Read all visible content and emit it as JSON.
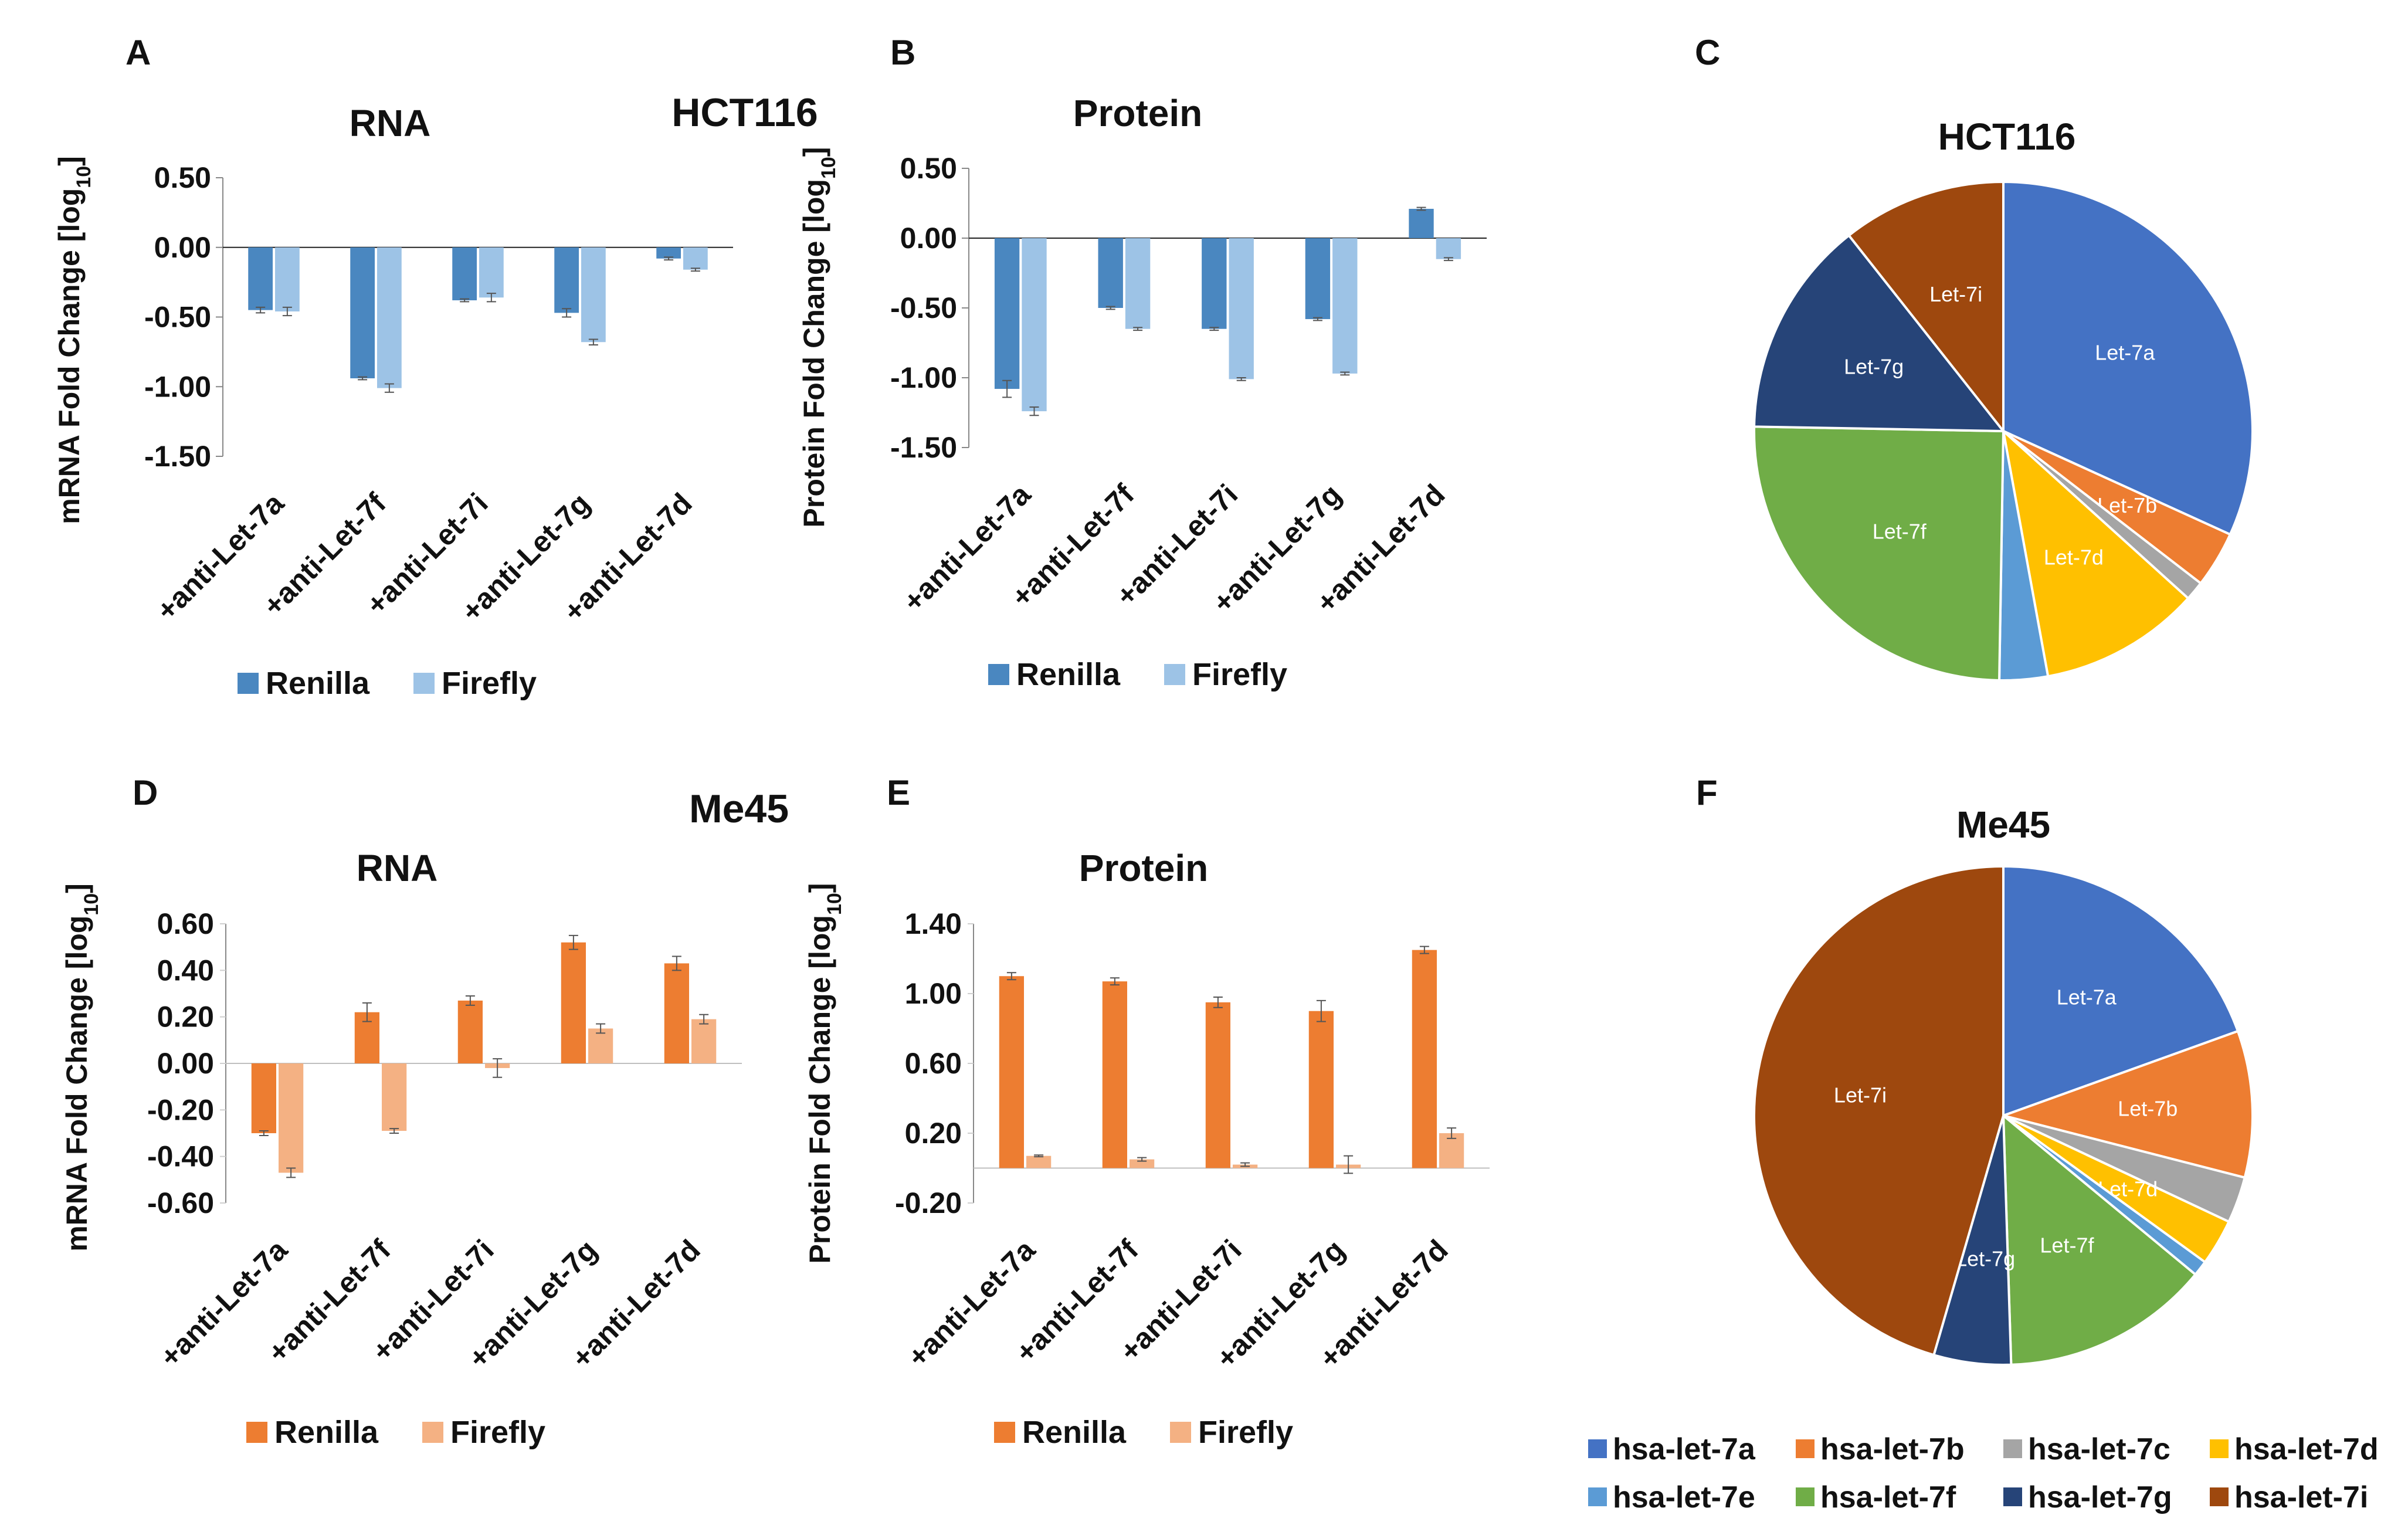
{
  "colors": {
    "renilla_blue": "#4a87c0",
    "firefly_blue": "#9dc3e6",
    "renilla_orange": "#ed7d31",
    "firefly_orange": "#f4b183",
    "pie": [
      "#4472c4",
      "#ed7d31",
      "#a5a5a5",
      "#ffc000",
      "#5b9bd5",
      "#70ad47",
      "#264478",
      "#9e480e"
    ]
  },
  "cells": {
    "top": "HCT116",
    "bottom": "Me45"
  },
  "categories": [
    "+anti-Let-7a",
    "+anti-Let-7f",
    "+anti-Let-7i",
    "+anti-Let-7g",
    "+anti-Let-7d"
  ],
  "series_names": [
    "Renilla",
    "Firefly"
  ],
  "pie_legend": [
    "hsa-let-7a",
    "hsa-let-7b",
    "hsa-let-7c",
    "hsa-let-7d",
    "hsa-let-7e",
    "hsa-let-7f",
    "hsa-let-7g",
    "hsa-let-7i"
  ],
  "chart_data": [
    {
      "panel": "A",
      "type": "bar",
      "title": "RNA",
      "ylabel": "mRNA Fold Change [log10]",
      "ylim": [
        -1.5,
        0.5
      ],
      "yticks": [
        0.5,
        0.0,
        -0.5,
        -1.0,
        -1.5
      ],
      "tick_labels": [
        "0.50",
        "0.00",
        "-0.50",
        "-1.00",
        "-1.50"
      ],
      "categories": [
        "+anti-Let-7a",
        "+anti-Let-7f",
        "+anti-Let-7i",
        "+anti-Let-7g",
        "+anti-Let-7d"
      ],
      "series": [
        {
          "name": "Renilla",
          "values": [
            -0.45,
            -0.94,
            -0.38,
            -0.47,
            -0.08
          ],
          "errors": [
            0.02,
            0.01,
            0.01,
            0.03,
            0.01
          ]
        },
        {
          "name": "Firefly",
          "values": [
            -0.46,
            -1.01,
            -0.36,
            -0.68,
            -0.16
          ],
          "errors": [
            0.03,
            0.03,
            0.03,
            0.02,
            0.01
          ]
        }
      ]
    },
    {
      "panel": "B",
      "type": "bar",
      "title": "Protein",
      "ylabel": "Protein Fold Change [log10]",
      "ylim": [
        -1.5,
        0.5
      ],
      "yticks": [
        0.5,
        0.0,
        -0.5,
        -1.0,
        -1.5
      ],
      "tick_labels": [
        "0.50",
        "0.00",
        "-0.50",
        "-1.00",
        "-1.50"
      ],
      "categories": [
        "+anti-Let-7a",
        "+anti-Let-7f",
        "+anti-Let-7i",
        "+anti-Let-7g",
        "+anti-Let-7d"
      ],
      "series": [
        {
          "name": "Renilla",
          "values": [
            -1.08,
            -0.5,
            -0.65,
            -0.58,
            0.21
          ],
          "errors": [
            0.06,
            0.01,
            0.01,
            0.01,
            0.01
          ]
        },
        {
          "name": "Firefly",
          "values": [
            -1.24,
            -0.65,
            -1.01,
            -0.97,
            -0.15
          ],
          "errors": [
            0.03,
            0.01,
            0.01,
            0.01,
            0.01
          ]
        }
      ]
    },
    {
      "panel": "C",
      "type": "pie",
      "title": "HCT116",
      "labels": [
        "Let-7a",
        "Let-7b",
        "Let-7c",
        "Let-7d",
        "Let-7e",
        "Let-7f",
        "Let-7g",
        "Let-7i"
      ],
      "values": [
        30.5,
        3.5,
        1.2,
        10.0,
        3.0,
        24.0,
        13.5,
        10.2
      ]
    },
    {
      "panel": "D",
      "type": "bar",
      "title": "RNA",
      "ylabel": "mRNA Fold Change [log10]",
      "ylim": [
        -0.6,
        0.6
      ],
      "yticks": [
        0.6,
        0.4,
        0.2,
        0.0,
        -0.2,
        -0.4,
        -0.6
      ],
      "tick_labels": [
        "0.60",
        "0.40",
        "0.20",
        "0.00",
        "-0.20",
        "-0.40",
        "-0.60"
      ],
      "categories": [
        "+anti-Let-7a",
        "+anti-Let-7f",
        "+anti-Let-7i",
        "+anti-Let-7g",
        "+anti-Let-7d"
      ],
      "series": [
        {
          "name": "Renilla",
          "values": [
            -0.3,
            0.22,
            0.27,
            0.52,
            0.43
          ],
          "errors": [
            0.01,
            0.04,
            0.02,
            0.03,
            0.03
          ]
        },
        {
          "name": "Firefly",
          "values": [
            -0.47,
            -0.29,
            -0.02,
            0.15,
            0.19
          ],
          "errors": [
            0.02,
            0.01,
            0.04,
            0.02,
            0.02
          ]
        }
      ]
    },
    {
      "panel": "E",
      "type": "bar",
      "title": "Protein",
      "ylabel": "Protein Fold Change [log10]",
      "ylim": [
        -0.2,
        1.4
      ],
      "yticks": [
        1.4,
        1.0,
        0.6,
        0.2,
        -0.2
      ],
      "tick_labels": [
        "1.40",
        "1.00",
        "0.60",
        "0.20",
        "-0.20"
      ],
      "categories": [
        "+anti-Let-7a",
        "+anti-Let-7f",
        "+anti-Let-7i",
        "+anti-Let-7g",
        "+anti-Let-7d"
      ],
      "series": [
        {
          "name": "Renilla",
          "values": [
            1.1,
            1.07,
            0.95,
            0.9,
            1.25
          ],
          "errors": [
            0.02,
            0.02,
            0.03,
            0.06,
            0.02
          ]
        },
        {
          "name": "Firefly",
          "values": [
            0.07,
            0.05,
            0.02,
            0.02,
            0.2
          ],
          "errors": [
            0.005,
            0.01,
            0.01,
            0.05,
            0.03
          ]
        }
      ]
    },
    {
      "panel": "F",
      "type": "pie",
      "title": "Me45",
      "labels": [
        "Let-7a",
        "Let-7b",
        "Let-7c",
        "Let-7d",
        "Let-7e",
        "Let-7f",
        "Let-7g",
        "Let-7i"
      ],
      "values": [
        19.5,
        9.5,
        3.0,
        3.0,
        1.0,
        13.5,
        5.0,
        45.5
      ]
    }
  ]
}
